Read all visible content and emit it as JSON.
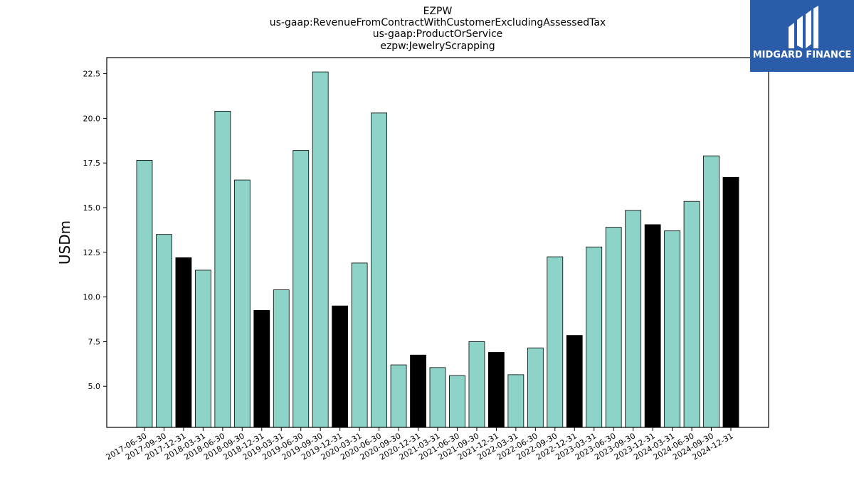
{
  "chart_data": {
    "type": "bar",
    "title_lines": [
      "EZPW",
      "us-gaap:RevenueFromContractWithCustomerExcludingAssessedTax",
      "us-gaap:ProductOrService",
      "ezpw:JewelryScrapping"
    ],
    "ylabel": "USDm",
    "ylim": [
      2.7,
      23.4
    ],
    "yticks": [
      5.0,
      7.5,
      10.0,
      12.5,
      15.0,
      17.5,
      20.0,
      22.5
    ],
    "categories": [
      "2017-06-30",
      "2017-09-30",
      "2017-12-31",
      "2018-03-31",
      "2018-06-30",
      "2018-09-30",
      "2018-12-31",
      "2019-03-31",
      "2019-06-30",
      "2019-09-30",
      "2019-12-31",
      "2020-03-31",
      "2020-06-30",
      "2020-09-30",
      "2020-12-31",
      "2021-03-31",
      "2021-06-30",
      "2021-09-30",
      "2021-12-31",
      "2022-03-31",
      "2022-06-30",
      "2022-09-30",
      "2022-12-31",
      "2023-03-31",
      "2023-06-30",
      "2023-09-30",
      "2023-12-31",
      "2024-03-31",
      "2024-06-30",
      "2024-09-30",
      "2024-12-31"
    ],
    "values": [
      17.65,
      13.5,
      12.2,
      11.5,
      20.4,
      16.55,
      9.25,
      10.4,
      18.2,
      22.6,
      9.5,
      11.9,
      20.3,
      6.2,
      6.75,
      6.05,
      5.6,
      7.5,
      6.9,
      5.65,
      7.15,
      12.25,
      7.85,
      12.8,
      13.9,
      14.85,
      14.05,
      13.7,
      15.35,
      17.9,
      16.7
    ],
    "highlight": [
      false,
      false,
      true,
      false,
      false,
      false,
      true,
      false,
      false,
      false,
      true,
      false,
      false,
      false,
      true,
      false,
      false,
      false,
      true,
      false,
      false,
      false,
      true,
      false,
      false,
      false,
      true,
      false,
      false,
      false,
      true
    ],
    "colors": {
      "normal": "#8dd3c7",
      "highlight": "#000000",
      "edge": "#000000"
    }
  },
  "logo": {
    "text": "MIDGARD FINANCE",
    "background": "#2a5caa"
  }
}
